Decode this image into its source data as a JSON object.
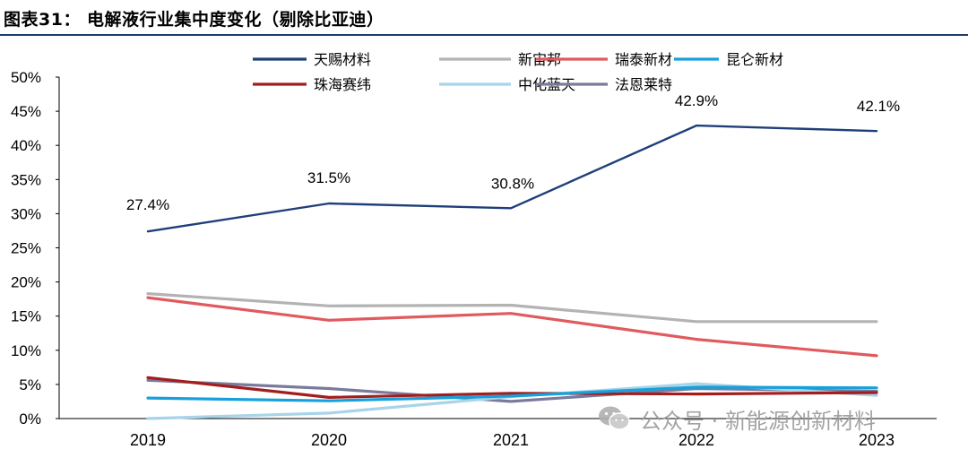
{
  "chart_data": {
    "type": "line",
    "title": "图表31：  电解液行业集中度变化（剔除比亚迪）",
    "categories": [
      "2019",
      "2020",
      "2021",
      "2022",
      "2023"
    ],
    "ylim": [
      0,
      50
    ],
    "yticks": [
      "0%",
      "5%",
      "10%",
      "15%",
      "20%",
      "25%",
      "30%",
      "35%",
      "40%",
      "45%",
      "50%"
    ],
    "xlabel": "",
    "ylabel": "",
    "legend_position": "top",
    "series": [
      {
        "name": "天赐材料",
        "color": "#1f3f7a",
        "values": [
          27.4,
          31.5,
          30.8,
          42.9,
          42.1
        ],
        "labels": [
          "27.4%",
          "31.5%",
          "30.8%",
          "42.9%",
          "42.1%"
        ]
      },
      {
        "name": "新宙邦",
        "color": "#b3b3b3",
        "values": [
          18.3,
          16.5,
          16.6,
          14.2,
          14.2
        ]
      },
      {
        "name": "瑞泰新材",
        "color": "#e05a5e",
        "values": [
          17.7,
          14.4,
          15.4,
          11.6,
          9.2
        ]
      },
      {
        "name": "昆仑新材",
        "color": "#17a1dc",
        "values": [
          3.0,
          2.6,
          3.3,
          4.6,
          4.5
        ]
      },
      {
        "name": "珠海赛纬",
        "color": "#a31d1d",
        "values": [
          6.0,
          3.1,
          3.7,
          3.6,
          3.8
        ]
      },
      {
        "name": "中化蓝天",
        "color": "#a8d4ea",
        "values": [
          0.0,
          0.8,
          3.2,
          5.1,
          3.4
        ]
      },
      {
        "name": "法恩莱特",
        "color": "#7a7b9c",
        "values": [
          5.6,
          4.4,
          2.5,
          4.4,
          4.0
        ]
      }
    ]
  },
  "watermark": {
    "text": "公众号 · 新能源创新材料",
    "icon": "wechat-icon"
  }
}
